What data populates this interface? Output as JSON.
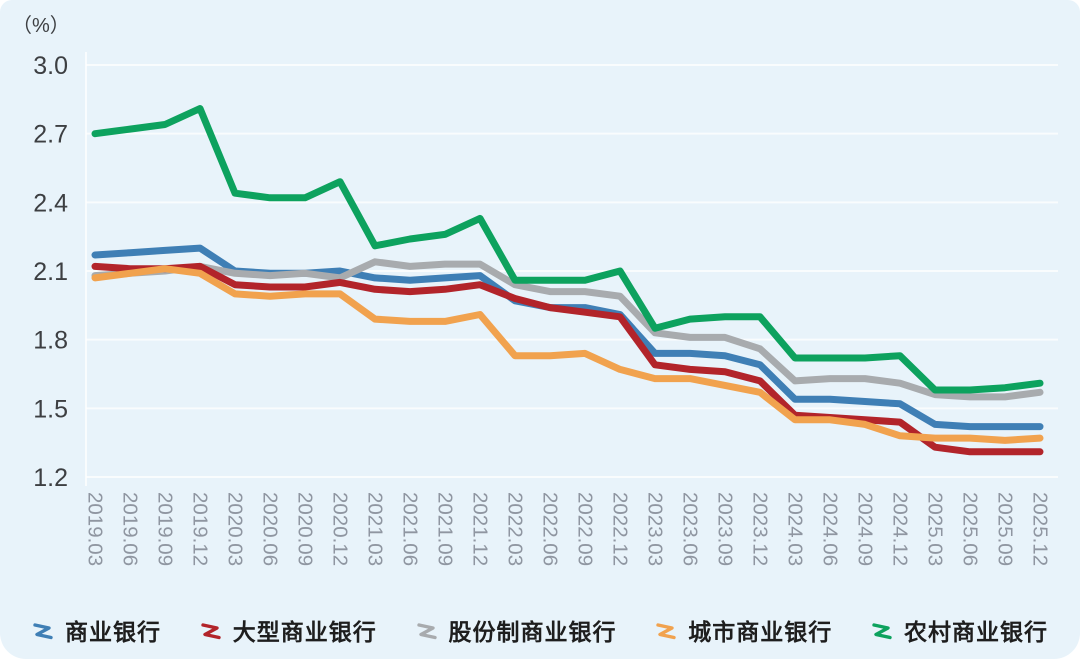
{
  "unit_label": "（%）",
  "chart_data": {
    "type": "line",
    "title": "",
    "ylabel": "（%）",
    "ylim": [
      1.2,
      3.0
    ],
    "y_ticks": [
      3.0,
      2.7,
      2.4,
      2.1,
      1.8,
      1.5,
      1.2
    ],
    "grid": true,
    "legend_position": "bottom",
    "x": [
      "2019.03",
      "2019.06",
      "2019.09",
      "2019.12",
      "2020.03",
      "2020.06",
      "2020.09",
      "2020.12",
      "2021.03",
      "2021.06",
      "2021.09",
      "2021.12",
      "2022.03",
      "2022.06",
      "2022.09",
      "2022.12",
      "2023.03",
      "2023.06",
      "2023.09",
      "2023.12",
      "2024.03",
      "2024.06",
      "2024.09",
      "2024.12",
      "2025.03",
      "2025.06",
      "2025.09",
      "2025.12"
    ],
    "draw_order": [
      0,
      2,
      1,
      3,
      4
    ],
    "series": [
      {
        "name": "商业银行",
        "slug": "commercial-banks",
        "color": "#3F7FB5",
        "values": [
          2.17,
          2.18,
          2.19,
          2.2,
          2.1,
          2.09,
          2.09,
          2.1,
          2.07,
          2.06,
          2.07,
          2.08,
          1.97,
          1.94,
          1.94,
          1.91,
          1.74,
          1.74,
          1.73,
          1.69,
          1.54,
          1.54,
          1.53,
          1.52,
          1.43,
          1.42,
          1.42,
          1.42
        ]
      },
      {
        "name": "大型商业银行",
        "slug": "large-commercial-banks",
        "color": "#B2242A",
        "values": [
          2.12,
          2.11,
          2.11,
          2.12,
          2.04,
          2.03,
          2.03,
          2.05,
          2.02,
          2.01,
          2.02,
          2.04,
          1.98,
          1.94,
          1.92,
          1.9,
          1.69,
          1.67,
          1.66,
          1.62,
          1.47,
          1.46,
          1.45,
          1.44,
          1.33,
          1.31,
          1.31,
          1.31
        ]
      },
      {
        "name": "股份制商业银行",
        "slug": "joint-stock-commercial-banks",
        "color": "#A8ABAE",
        "values": [
          2.08,
          2.09,
          2.1,
          2.12,
          2.09,
          2.08,
          2.09,
          2.07,
          2.14,
          2.12,
          2.13,
          2.13,
          2.04,
          2.01,
          2.01,
          1.99,
          1.83,
          1.81,
          1.81,
          1.76,
          1.62,
          1.63,
          1.63,
          1.61,
          1.56,
          1.55,
          1.55,
          1.57
        ]
      },
      {
        "name": "城市商业银行",
        "slug": "city-commercial-banks",
        "color": "#F1A24E",
        "values": [
          2.07,
          2.09,
          2.11,
          2.09,
          2.0,
          1.99,
          2.0,
          2.0,
          1.89,
          1.88,
          1.88,
          1.91,
          1.73,
          1.73,
          1.74,
          1.67,
          1.63,
          1.63,
          1.6,
          1.57,
          1.45,
          1.45,
          1.43,
          1.38,
          1.37,
          1.37,
          1.36,
          1.37
        ]
      },
      {
        "name": "农村商业银行",
        "slug": "rural-commercial-banks",
        "color": "#0DA25E",
        "values": [
          2.7,
          2.72,
          2.74,
          2.81,
          2.44,
          2.42,
          2.42,
          2.49,
          2.21,
          2.24,
          2.26,
          2.33,
          2.06,
          2.06,
          2.06,
          2.1,
          1.85,
          1.89,
          1.9,
          1.9,
          1.72,
          1.72,
          1.72,
          1.73,
          1.58,
          1.58,
          1.59,
          1.61
        ]
      }
    ],
    "style": {
      "background": "#E8F3FA",
      "grid_color": "#FFFFFF",
      "y_tick_color": "#3D3F42",
      "x_tick_color": "#8F96A1",
      "line_width": 7
    }
  }
}
